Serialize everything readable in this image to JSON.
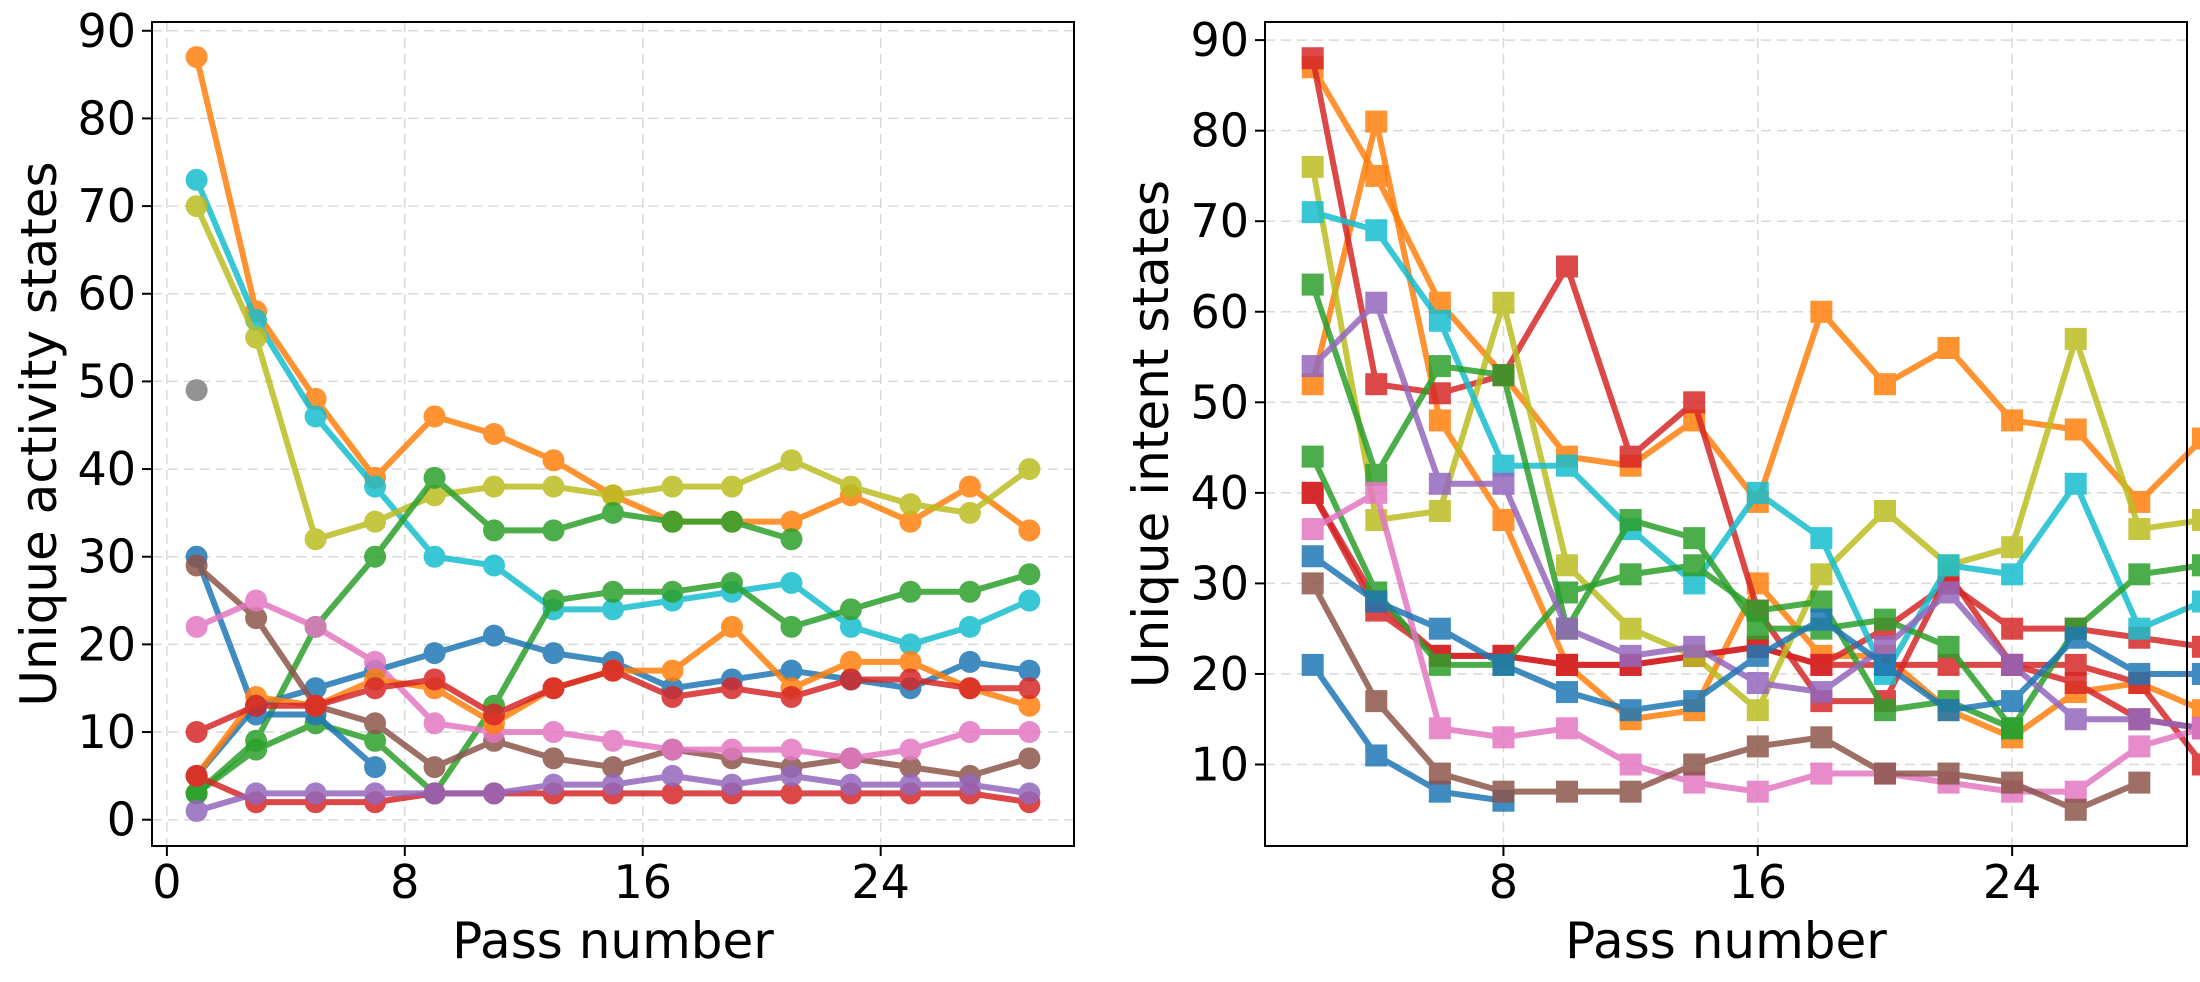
{
  "chart_data": [
    {
      "type": "line",
      "xlabel": "Pass number",
      "ylabel": "Unique activity states",
      "xlim": [
        -0.5,
        30.5
      ],
      "ylim": [
        -3,
        91
      ],
      "xticks": [
        0,
        8,
        16,
        24
      ],
      "yticks": [
        0,
        10,
        20,
        30,
        40,
        50,
        60,
        70,
        80,
        90
      ],
      "grid": true,
      "marker": "circle",
      "series": [
        {
          "color": "#ff7f0e",
          "x": [
            1,
            3,
            5,
            7,
            9,
            11,
            13,
            15,
            17,
            19,
            21,
            23,
            25,
            27,
            29
          ],
          "y": [
            87,
            58,
            48,
            39,
            46,
            44,
            41,
            37,
            34,
            34,
            34,
            37,
            34,
            38,
            33
          ]
        },
        {
          "color": "#17becf",
          "x": [
            1,
            3,
            5,
            7,
            9,
            11,
            13,
            15,
            17,
            19,
            21,
            23,
            25,
            27,
            29
          ],
          "y": [
            73,
            57,
            46,
            38,
            30,
            29,
            24,
            24,
            25,
            26,
            27,
            22,
            20,
            22,
            25
          ]
        },
        {
          "color": "#bcbd22",
          "x": [
            1,
            3,
            5,
            7,
            9,
            11,
            13,
            15,
            17,
            19,
            21,
            23,
            25,
            27,
            29
          ],
          "y": [
            70,
            55,
            32,
            34,
            37,
            38,
            38,
            37,
            38,
            38,
            41,
            38,
            36,
            35,
            40
          ]
        },
        {
          "color": "#7f7f7f",
          "x": [
            1
          ],
          "y": [
            49
          ]
        },
        {
          "color": "#2ca02c",
          "x": [
            1,
            3,
            5,
            7,
            9,
            11,
            13,
            15,
            17,
            19,
            21
          ],
          "y": [
            3,
            9,
            22,
            30,
            39,
            33,
            33,
            35,
            34,
            34,
            32
          ]
        },
        {
          "color": "#2ca02c",
          "x": [
            1,
            3,
            5,
            7,
            9,
            11,
            13,
            15,
            17,
            19,
            21,
            23,
            25,
            27,
            29
          ],
          "y": [
            3,
            8,
            11,
            9,
            3,
            13,
            25,
            26,
            26,
            27,
            22,
            24,
            26,
            26,
            28
          ]
        },
        {
          "color": "#1f77b4",
          "x": [
            1,
            3,
            5,
            7
          ],
          "y": [
            30,
            12,
            12,
            6
          ]
        },
        {
          "color": "#1f77b4",
          "x": [
            1,
            3,
            5,
            7,
            9,
            11,
            13,
            15,
            17,
            19,
            21,
            23,
            25,
            27,
            29
          ],
          "y": [
            5,
            13,
            15,
            17,
            19,
            21,
            19,
            18,
            15,
            16,
            17,
            16,
            15,
            18,
            17
          ]
        },
        {
          "color": "#8c564b",
          "x": [
            1,
            3,
            5,
            7,
            9,
            11,
            13,
            15,
            17,
            19,
            21,
            23,
            25,
            27,
            29
          ],
          "y": [
            29,
            23,
            13,
            11,
            6,
            9,
            7,
            6,
            8,
            7,
            6,
            7,
            6,
            5,
            7
          ]
        },
        {
          "color": "#e377c2",
          "x": [
            1,
            3,
            5,
            7,
            9,
            11,
            13,
            15,
            17,
            19,
            21,
            23,
            25,
            27,
            29
          ],
          "y": [
            22,
            25,
            22,
            18,
            11,
            10,
            10,
            9,
            8,
            8,
            8,
            7,
            8,
            10,
            10
          ]
        },
        {
          "color": "#ff7f0e",
          "x": [
            1,
            3,
            5,
            7,
            9,
            11,
            13,
            15,
            17,
            19,
            21,
            23,
            25,
            27,
            29
          ],
          "y": [
            5,
            14,
            13,
            16,
            15,
            11,
            15,
            17,
            17,
            22,
            15,
            18,
            18,
            15,
            13
          ]
        },
        {
          "color": "#d62728",
          "x": [
            1,
            3,
            5,
            7,
            9,
            11,
            13,
            15,
            17,
            19,
            21,
            23,
            25,
            27,
            29
          ],
          "y": [
            10,
            13,
            13,
            15,
            16,
            12,
            15,
            17,
            14,
            15,
            14,
            16,
            16,
            15,
            15
          ]
        },
        {
          "color": "#d62728",
          "x": [
            1,
            3,
            5,
            7,
            9,
            11,
            13,
            15,
            17,
            19,
            21,
            23,
            25,
            27,
            29
          ],
          "y": [
            5,
            2,
            2,
            2,
            3,
            3,
            3,
            3,
            3,
            3,
            3,
            3,
            3,
            3,
            2
          ]
        },
        {
          "color": "#9467bd",
          "x": [
            1,
            3,
            5,
            7,
            9,
            11,
            13,
            15,
            17,
            19,
            21,
            23,
            25,
            27,
            29
          ],
          "y": [
            1,
            3,
            3,
            3,
            3,
            3,
            4,
            4,
            5,
            4,
            5,
            4,
            4,
            4,
            3
          ]
        }
      ]
    },
    {
      "type": "line",
      "xlabel": "Pass number",
      "ylabel": "Unique intent states",
      "xlim": [
        0.5,
        29.5
      ],
      "ylim": [
        1,
        92
      ],
      "xticks": [
        8,
        16,
        24
      ],
      "yticks": [
        10,
        20,
        30,
        40,
        50,
        60,
        70,
        80,
        90
      ],
      "grid": true,
      "marker": "square",
      "series": [
        {
          "color": "#ff7f0e",
          "x": [
            2,
            4,
            6,
            8,
            10,
            12,
            14,
            16,
            18,
            20,
            22,
            24,
            26,
            28,
            30
          ],
          "y": [
            87,
            75,
            61,
            53,
            44,
            43,
            48,
            39,
            60,
            52,
            56,
            48,
            47,
            39,
            46
          ]
        },
        {
          "color": "#ff7f0e",
          "x": [
            2,
            4,
            6,
            8,
            10,
            12,
            14,
            16,
            18,
            20,
            22,
            24,
            26,
            28,
            30
          ],
          "y": [
            52,
            81,
            48,
            37,
            21,
            15,
            16,
            30,
            22,
            22,
            16,
            13,
            18,
            19,
            16
          ]
        },
        {
          "color": "#d62728",
          "x": [
            2,
            4,
            6,
            8,
            10,
            12,
            14,
            16,
            18,
            20,
            22,
            24,
            26,
            28,
            30
          ],
          "y": [
            88,
            52,
            51,
            53,
            65,
            44,
            50,
            27,
            17,
            17,
            31,
            21,
            19,
            15,
            14
          ]
        },
        {
          "color": "#d62728",
          "x": [
            2,
            4,
            6,
            8,
            10,
            12,
            14,
            16,
            18,
            20,
            22,
            24,
            26,
            28,
            30
          ],
          "y": [
            40,
            27,
            22,
            22,
            21,
            21,
            22,
            23,
            21,
            25,
            30,
            25,
            25,
            24,
            23
          ]
        },
        {
          "color": "#d62728",
          "x": [
            2,
            4,
            6,
            8,
            10,
            12,
            14,
            16,
            18,
            20,
            22,
            24,
            26,
            28,
            30
          ],
          "y": [
            40,
            28,
            22,
            22,
            21,
            21,
            22,
            23,
            21,
            21,
            21,
            21,
            21,
            19,
            10
          ]
        },
        {
          "color": "#bcbd22",
          "x": [
            2,
            4,
            6,
            8,
            10,
            12,
            14,
            16,
            18,
            20,
            22,
            24,
            26,
            28,
            30
          ],
          "y": [
            76,
            37,
            38,
            61,
            32,
            25,
            22,
            16,
            31,
            38,
            32,
            34,
            57,
            36,
            37
          ]
        },
        {
          "color": "#17becf",
          "x": [
            2,
            4,
            6,
            8,
            10,
            12,
            14,
            16,
            18,
            20,
            22,
            24,
            26,
            28,
            30
          ],
          "y": [
            71,
            69,
            59,
            43,
            43,
            36,
            30,
            40,
            35,
            20,
            32,
            31,
            41,
            25,
            28
          ]
        },
        {
          "color": "#2ca02c",
          "x": [
            2,
            4,
            6,
            8,
            10,
            12,
            14,
            16,
            18,
            20,
            22,
            24,
            26,
            28,
            30
          ],
          "y": [
            63,
            42,
            54,
            53,
            25,
            37,
            35,
            25,
            25,
            26,
            23,
            14,
            25,
            31,
            32
          ]
        },
        {
          "color": "#2ca02c",
          "x": [
            2,
            4,
            6,
            8,
            10,
            12,
            14,
            16,
            18,
            20,
            22,
            24
          ],
          "y": [
            44,
            29,
            21,
            21,
            29,
            31,
            32,
            27,
            28,
            16,
            17,
            14
          ]
        },
        {
          "color": "#9467bd",
          "x": [
            2,
            4,
            6,
            8,
            10,
            12,
            14,
            16,
            18,
            20,
            22,
            24,
            26,
            28,
            30
          ],
          "y": [
            54,
            61,
            41,
            41,
            25,
            22,
            23,
            19,
            18,
            23,
            29,
            21,
            15,
            15,
            14
          ]
        },
        {
          "color": "#e377c2",
          "x": [
            2,
            4,
            6,
            8,
            10,
            12,
            14,
            16,
            18,
            20,
            22,
            24,
            26,
            28,
            30
          ],
          "y": [
            36,
            40,
            14,
            13,
            14,
            10,
            8,
            7,
            9,
            9,
            8,
            7,
            7,
            12,
            14
          ]
        },
        {
          "color": "#1f77b4",
          "x": [
            2,
            4,
            6,
            8,
            10,
            12,
            14,
            16,
            18,
            20,
            22,
            24,
            26,
            28,
            30
          ],
          "y": [
            33,
            28,
            25,
            21,
            18,
            16,
            17,
            22,
            26,
            21,
            16,
            17,
            24,
            20,
            20
          ]
        },
        {
          "color": "#1f77b4",
          "x": [
            2,
            4,
            6,
            8
          ],
          "y": [
            21,
            11,
            7,
            6
          ]
        },
        {
          "color": "#8c564b",
          "x": [
            2,
            4,
            6,
            8,
            10,
            12,
            14,
            16,
            18,
            20,
            22,
            24,
            26,
            28
          ],
          "y": [
            30,
            17,
            9,
            7,
            7,
            7,
            10,
            12,
            13,
            9,
            9,
            8,
            5,
            8
          ]
        }
      ]
    }
  ]
}
